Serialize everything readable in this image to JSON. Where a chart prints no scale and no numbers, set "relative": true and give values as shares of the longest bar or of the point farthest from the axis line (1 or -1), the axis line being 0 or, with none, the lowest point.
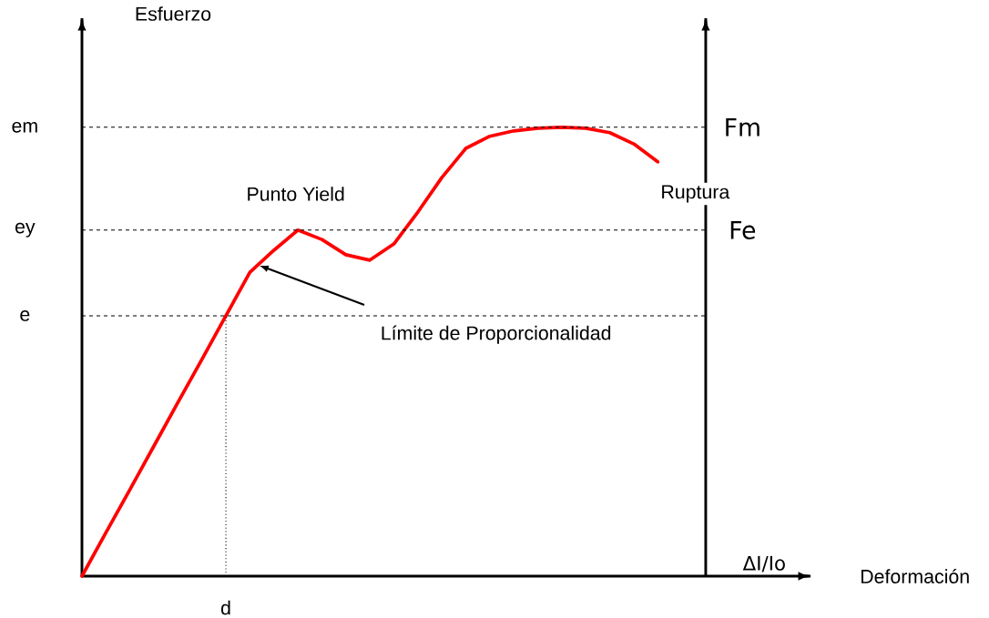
{
  "chart_data": {
    "type": "line",
    "relative": true,
    "marker": "none",
    "line_style": "solid",
    "categories": [
      null,
      null,
      null,
      null,
      null,
      null,
      null,
      null,
      null,
      null,
      null,
      null,
      null,
      null,
      null,
      null,
      null,
      null,
      null,
      null,
      null,
      null,
      null,
      null,
      null,
      null,
      null
    ],
    "series": [
      {
        "color": "#ff0000",
        "values": [
          0,
          0.097,
          0.193,
          0.29,
          0.387,
          0.483,
          0.58,
          0.677,
          0.726,
          0.771,
          0.75,
          0.716,
          0.704,
          0.74,
          0.811,
          0.888,
          0.953,
          0.98,
          0.992,
          0.998,
          1.0,
          0.998,
          0.988,
          0.963,
          0.923,
          null,
          null
        ]
      }
    ],
    "ref_lines": [
      {
        "axis": "y",
        "value": 1.0,
        "label": "em",
        "line_style": "dashed"
      },
      {
        "axis": "y",
        "value": 0.771,
        "label": "ey",
        "line_style": "dashed"
      },
      {
        "axis": "y",
        "value": 0.58,
        "label": "e",
        "line_style": "dashed"
      }
    ],
    "annotations": [
      "Punto Yield",
      "Límite de Proporcionalidad",
      "Ruptura",
      "Fm",
      "Fe",
      "ΔI/Io",
      "Esfuerzo",
      "Deformación",
      "d"
    ]
  }
}
